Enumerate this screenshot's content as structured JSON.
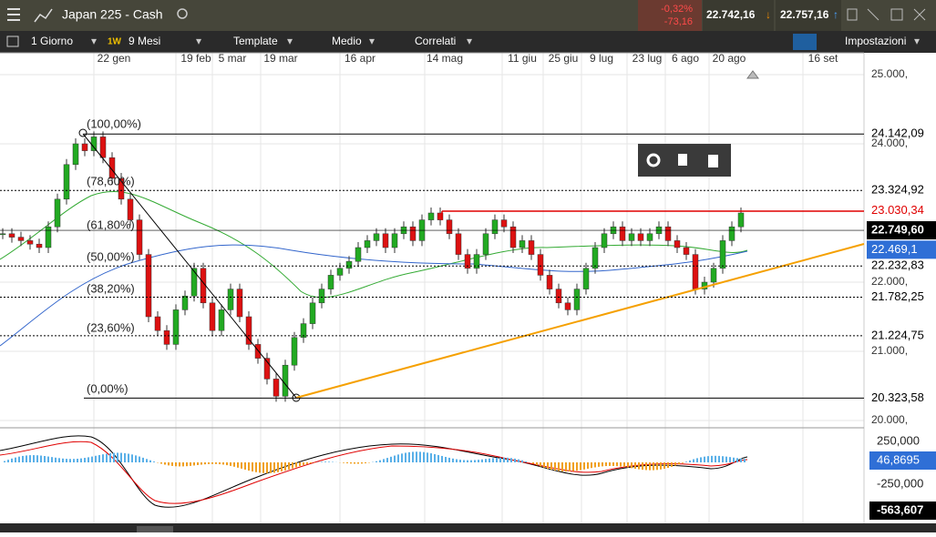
{
  "header": {
    "instrument": "Japan 225 - Cash",
    "change_pct": "-0,32%",
    "change_abs": "-73,16",
    "sell": "22.742,16",
    "buy": "22.757,16"
  },
  "toolbar": {
    "interval": "1 Giorno",
    "interval_short": "1W",
    "range": "9 Mesi",
    "template": "Template",
    "indicator": "Medio",
    "correlated": "Correlati",
    "settings": "Impostazioni"
  },
  "chart": {
    "dates": [
      "22 gen",
      "19 feb",
      "5 mar",
      "19 mar",
      "16 apr",
      "14 mag",
      "11 giu",
      "25 giu",
      "9 lug",
      "23 lug",
      "6 ago",
      "20 ago",
      "16 set"
    ],
    "yticks": [
      {
        "value": 25000,
        "label": "25.000,"
      },
      {
        "value": 24000,
        "label": "24.000,"
      },
      {
        "value": 22000,
        "label": "22.000,"
      },
      {
        "value": 21000,
        "label": "21.000,"
      },
      {
        "value": 20000,
        "label": "20.000,"
      }
    ],
    "price_levels": [
      {
        "value": 24142.09,
        "label": "24.142,09",
        "color": "#000000"
      },
      {
        "value": 23324.92,
        "label": "23.324,92",
        "color": "#000000"
      },
      {
        "value": 23030.34,
        "label": "23.030,34",
        "color": "#e00000"
      },
      {
        "value": 22749.6,
        "label": "22.749,60",
        "color": "#000000"
      },
      {
        "value": 22469.1,
        "label": "22.469,1",
        "color": "#2f6fd6"
      },
      {
        "value": 22232.83,
        "label": "22.232,83",
        "color": "#000000"
      },
      {
        "value": 21782.25,
        "label": "21.782,25",
        "color": "#000000"
      },
      {
        "value": 21224.75,
        "label": "21.224,75",
        "color": "#000000"
      },
      {
        "value": 20323.58,
        "label": "20.323,58",
        "color": "#000000"
      }
    ],
    "fib_labels": [
      "(100,00%)",
      "(78,60%)",
      "(61,80%)",
      "(50,00%)",
      "(38,20%)",
      "(23,60%)",
      "(0,00%)"
    ],
    "closes": [
      22700,
      22650,
      22600,
      22550,
      22500,
      22800,
      23200,
      23700,
      24000,
      23900,
      24100,
      23800,
      23500,
      23200,
      22900,
      22400,
      21500,
      21300,
      21100,
      21600,
      21800,
      22200,
      21700,
      21300,
      21600,
      21900,
      21500,
      21100,
      20900,
      20600,
      20350,
      20800,
      21200,
      21400,
      21700,
      21900,
      22100,
      22200,
      22300,
      22500,
      22600,
      22700,
      22500,
      22700,
      22800,
      22600,
      22900,
      23000,
      22900,
      22700,
      22400,
      22200,
      22400,
      22700,
      22900,
      22800,
      22500,
      22600,
      22400,
      22100,
      21900,
      21700,
      21600,
      21900,
      22200,
      22500,
      22700,
      22800,
      22600,
      22700,
      22600,
      22700,
      22800,
      22600,
      22500,
      22400,
      21900,
      22000,
      22200,
      22600,
      22800,
      23000
    ]
  },
  "macd": {
    "labels": [
      "250,000",
      "46,8695",
      "-250,000",
      "-563,607"
    ]
  }
}
